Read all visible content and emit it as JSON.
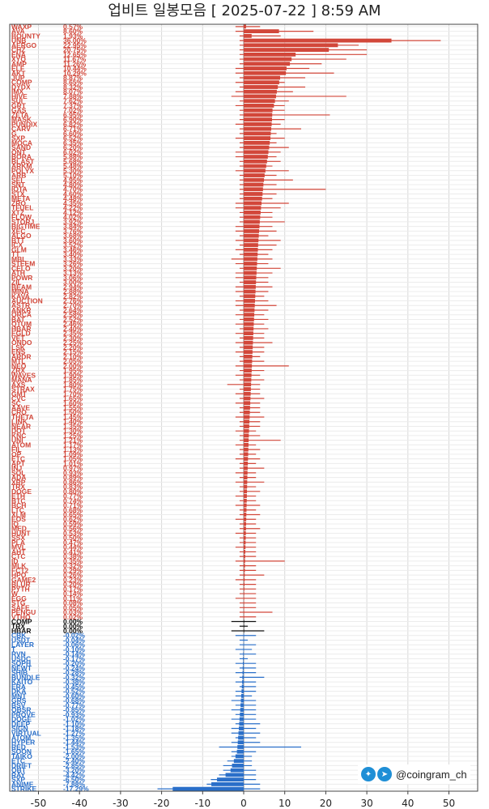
{
  "title": "업비트 일봉모음 [ 2025-07-22 ]  8:59 AM",
  "brand": {
    "handle": "@coingram_ch",
    "icons": [
      "twitter-icon",
      "telegram-icon"
    ]
  },
  "colors": {
    "up": "#d2473a",
    "flat": "#111111",
    "down": "#2a6fc9",
    "grid": "#d8d8d8"
  },
  "chart_data": {
    "type": "bar",
    "orientation": "horizontal",
    "xlim": [
      -57,
      57
    ],
    "xticks": [
      -50,
      -40,
      -30,
      -20,
      -10,
      0,
      10,
      20,
      30,
      40,
      50
    ],
    "grid": true,
    "series": [
      {
        "name": "WAXP",
        "change": 0.57,
        "low": -2,
        "high": 4
      },
      {
        "name": "AVA",
        "change": 8.6,
        "low": -2,
        "high": 17
      },
      {
        "name": "BOUNTY",
        "change": 1.93,
        "low": -1,
        "high": 9
      },
      {
        "name": "UNB",
        "change": 36.0,
        "low": -1,
        "high": 48
      },
      {
        "name": "AERGO",
        "change": 22.95,
        "low": -1,
        "high": 28
      },
      {
        "name": "CHZ",
        "change": 20.75,
        "low": -1,
        "high": 30
      },
      {
        "name": "ENA",
        "change": 12.65,
        "low": -1,
        "high": 30
      },
      {
        "name": "XYO",
        "change": 11.67,
        "low": -1,
        "high": 25
      },
      {
        "name": "AMP",
        "change": 11.26,
        "low": -1,
        "high": 19
      },
      {
        "name": "ELF",
        "change": 10.44,
        "low": -2,
        "high": 16
      },
      {
        "name": "AKT",
        "change": 10.29,
        "low": -2,
        "high": 22
      },
      {
        "name": "JUP",
        "change": 8.87,
        "low": -1,
        "high": 15
      },
      {
        "name": "COMP",
        "change": 8.65,
        "low": -2,
        "high": 10
      },
      {
        "name": "DYDX",
        "change": 8.32,
        "low": -1,
        "high": 15
      },
      {
        "name": "IMX",
        "change": 8.07,
        "low": -2,
        "high": 12
      },
      {
        "name": "HIVE",
        "change": 7.88,
        "low": -3,
        "high": 25
      },
      {
        "name": "SUI",
        "change": 7.62,
        "low": -1,
        "high": 11
      },
      {
        "name": "GRT",
        "change": 7.37,
        "low": -2,
        "high": 10
      },
      {
        "name": "GAS",
        "change": 7.02,
        "low": -1,
        "high": 10
      },
      {
        "name": "ZETA",
        "change": 6.95,
        "low": -1,
        "high": 21
      },
      {
        "name": "MASK",
        "change": 6.9,
        "low": -1,
        "high": 10
      },
      {
        "name": "PUNDIX",
        "change": 6.82,
        "low": -2,
        "high": 9
      },
      {
        "name": "CARV",
        "change": 6.71,
        "low": -1,
        "high": 14
      },
      {
        "name": "G",
        "change": 6.6,
        "low": -1,
        "high": 8
      },
      {
        "name": "SXP",
        "change": 6.52,
        "low": -2,
        "high": 10
      },
      {
        "name": "MOCA",
        "change": 6.35,
        "low": -1,
        "high": 8
      },
      {
        "name": "SAND",
        "change": 6.2,
        "low": -1,
        "high": 11
      },
      {
        "name": "ONT",
        "change": 6.02,
        "low": -2,
        "high": 9
      },
      {
        "name": "BORA",
        "change": 5.88,
        "low": -2,
        "high": 8
      },
      {
        "name": "BLAST",
        "change": 5.68,
        "low": -1,
        "high": 9
      },
      {
        "name": "ARKM",
        "change": 5.48,
        "low": -1,
        "high": 7
      },
      {
        "name": "POLYX",
        "change": 5.3,
        "low": -2,
        "high": 11
      },
      {
        "name": "ARB",
        "change": 5.1,
        "low": -1,
        "high": 8
      },
      {
        "name": "SEI",
        "change": 4.95,
        "low": -1,
        "high": 12
      },
      {
        "name": "SNT",
        "change": 4.8,
        "low": -1,
        "high": 8
      },
      {
        "name": "IOTA",
        "change": 4.7,
        "low": -1,
        "high": 20
      },
      {
        "name": "STX",
        "change": 4.6,
        "low": -1,
        "high": 8
      },
      {
        "name": "META",
        "change": 4.48,
        "low": -1,
        "high": 7
      },
      {
        "name": "ZRO",
        "change": 4.35,
        "low": -2,
        "high": 11
      },
      {
        "name": "TFUEL",
        "change": 4.22,
        "low": -2,
        "high": 9
      },
      {
        "name": "XTZ",
        "change": 4.12,
        "low": -1,
        "high": 7
      },
      {
        "name": "FLOW",
        "change": 4.02,
        "low": -1,
        "high": 7
      },
      {
        "name": "STORJ",
        "change": 3.92,
        "low": -1,
        "high": 10
      },
      {
        "name": "BIGTIME",
        "change": 3.84,
        "low": -2,
        "high": 7
      },
      {
        "name": "XEC",
        "change": 3.76,
        "low": -2,
        "high": 8
      },
      {
        "name": "ALGO",
        "change": 3.68,
        "low": -1,
        "high": 6
      },
      {
        "name": "BTT",
        "change": 3.6,
        "low": -2,
        "high": 9
      },
      {
        "name": "ICX",
        "change": 3.52,
        "low": -1,
        "high": 8
      },
      {
        "name": "GLM",
        "change": 3.46,
        "low": -2,
        "high": 7
      },
      {
        "name": "TT",
        "change": 3.4,
        "low": -1,
        "high": 6
      },
      {
        "name": "MBL",
        "change": 3.33,
        "low": -3,
        "high": 7
      },
      {
        "name": "STEEM",
        "change": 3.26,
        "low": -2,
        "high": 6
      },
      {
        "name": "CELO",
        "change": 3.2,
        "low": -1,
        "high": 9
      },
      {
        "name": "ATH",
        "change": 3.13,
        "low": -2,
        "high": 7
      },
      {
        "name": "POWR",
        "change": 3.06,
        "low": -2,
        "high": 6
      },
      {
        "name": "ZIL",
        "change": 3.0,
        "low": -1,
        "high": 6
      },
      {
        "name": "BEAM",
        "change": 2.94,
        "low": -2,
        "high": 7
      },
      {
        "name": "MINA",
        "change": 2.88,
        "low": -2,
        "high": 6
      },
      {
        "name": "KAVA",
        "change": 2.82,
        "low": -1,
        "high": 5
      },
      {
        "name": "AUCTION",
        "change": 2.76,
        "low": -2,
        "high": 6
      },
      {
        "name": "ASTR",
        "change": 2.7,
        "low": -2,
        "high": 8
      },
      {
        "name": "ANKR",
        "change": 2.64,
        "low": -1,
        "high": 6
      },
      {
        "name": "ORCA",
        "change": 2.58,
        "low": -2,
        "high": 5
      },
      {
        "name": "BAT",
        "change": 2.52,
        "low": -1,
        "high": 6
      },
      {
        "name": "QTUM",
        "change": 2.46,
        "low": -2,
        "high": 5
      },
      {
        "name": "HBAR",
        "change": 2.4,
        "low": -1,
        "high": 6
      },
      {
        "name": "EGLD",
        "change": 2.35,
        "low": -2,
        "high": 5
      },
      {
        "name": "VET",
        "change": 2.3,
        "low": -1,
        "high": 5
      },
      {
        "name": "ONDO",
        "change": 2.25,
        "low": -2,
        "high": 7
      },
      {
        "name": "LSK",
        "change": 2.2,
        "low": -1,
        "high": 5
      },
      {
        "name": "ENS",
        "change": 2.15,
        "low": -2,
        "high": 5
      },
      {
        "name": "ARDR",
        "change": 2.1,
        "low": -1,
        "high": 4
      },
      {
        "name": "MTL",
        "change": 2.05,
        "low": -1,
        "high": 5
      },
      {
        "name": "NEO",
        "change": 2.0,
        "low": -2,
        "high": 11
      },
      {
        "name": "ZRX",
        "change": 1.95,
        "low": -1,
        "high": 5
      },
      {
        "name": "WAVES",
        "change": 1.9,
        "low": -2,
        "high": 4
      },
      {
        "name": "MANA",
        "change": 1.85,
        "low": -1,
        "high": 5
      },
      {
        "name": "AXS",
        "change": 1.8,
        "low": -4,
        "high": 4
      },
      {
        "name": "STRAX",
        "change": 1.75,
        "low": -1,
        "high": 4
      },
      {
        "name": "GMT",
        "change": 1.7,
        "low": -2,
        "high": 4
      },
      {
        "name": "CVC",
        "change": 1.65,
        "low": -1,
        "high": 5
      },
      {
        "name": "SC",
        "change": 1.6,
        "low": -2,
        "high": 4
      },
      {
        "name": "AAVE",
        "change": 1.55,
        "low": -1,
        "high": 4
      },
      {
        "name": "CRO",
        "change": 1.5,
        "low": -1,
        "high": 4
      },
      {
        "name": "THETA",
        "change": 1.45,
        "low": -2,
        "high": 5
      },
      {
        "name": "LINK",
        "change": 1.4,
        "low": -1,
        "high": 4
      },
      {
        "name": "NEAR",
        "change": 1.35,
        "low": -1,
        "high": 4
      },
      {
        "name": "DOT",
        "change": 1.3,
        "low": -2,
        "high": 3
      },
      {
        "name": "KNC",
        "change": 1.25,
        "low": -1,
        "high": 4
      },
      {
        "name": "UNI",
        "change": 1.21,
        "low": -1,
        "high": 9
      },
      {
        "name": "ATOM",
        "change": 1.17,
        "low": -2,
        "high": 3
      },
      {
        "name": "FIL",
        "change": 1.13,
        "low": -1,
        "high": 4
      },
      {
        "name": "OP",
        "change": 1.09,
        "low": -1,
        "high": 3
      },
      {
        "name": "ETC",
        "change": 1.05,
        "low": -2,
        "high": 4
      },
      {
        "name": "APT",
        "change": 1.01,
        "low": -1,
        "high": 3
      },
      {
        "name": "INJ",
        "change": 0.97,
        "low": -1,
        "high": 5
      },
      {
        "name": "SOL",
        "change": 0.93,
        "low": -2,
        "high": 3
      },
      {
        "name": "ADA",
        "change": 0.89,
        "low": -1,
        "high": 3
      },
      {
        "name": "XRP",
        "change": 0.86,
        "low": -2,
        "high": 5
      },
      {
        "name": "TRX",
        "change": 0.83,
        "low": -1,
        "high": 3
      },
      {
        "name": "DOGE",
        "change": 0.8,
        "low": -1,
        "high": 4
      },
      {
        "name": "ETH",
        "change": 0.77,
        "low": -2,
        "high": 3
      },
      {
        "name": "BTC",
        "change": 0.74,
        "low": -1,
        "high": 3
      },
      {
        "name": "BCH",
        "change": 0.71,
        "low": -2,
        "high": 4
      },
      {
        "name": "LTC",
        "change": 0.68,
        "low": -1,
        "high": 3
      },
      {
        "name": "XLM",
        "change": 0.65,
        "low": -1,
        "high": 4
      },
      {
        "name": "EOS",
        "change": 0.62,
        "low": -2,
        "high": 3
      },
      {
        "name": "IQ",
        "change": 0.59,
        "low": -1,
        "high": 3
      },
      {
        "name": "MED",
        "change": 0.56,
        "low": -1,
        "high": 4
      },
      {
        "name": "HUNT",
        "change": 0.53,
        "low": -2,
        "high": 3
      },
      {
        "name": "SSX",
        "change": 0.5,
        "low": -1,
        "high": 3
      },
      {
        "name": "PLA",
        "change": 0.47,
        "low": -1,
        "high": 3
      },
      {
        "name": "MVL",
        "change": 0.44,
        "low": -2,
        "high": 3
      },
      {
        "name": "AHT",
        "change": 0.41,
        "low": -1,
        "high": 3
      },
      {
        "name": "CTC",
        "change": 0.38,
        "low": -1,
        "high": 3
      },
      {
        "name": "ID",
        "change": 0.35,
        "low": -2,
        "high": 10
      },
      {
        "name": "MLK",
        "change": 0.32,
        "low": -1,
        "high": 3
      },
      {
        "name": "FCT2",
        "change": 0.29,
        "low": -1,
        "high": 3
      },
      {
        "name": "HPO",
        "change": 0.26,
        "low": -1,
        "high": 5
      },
      {
        "name": "GAME2",
        "change": 0.23,
        "low": -2,
        "high": 3
      },
      {
        "name": "BLUR",
        "change": 0.2,
        "low": -1,
        "high": 3
      },
      {
        "name": "PYTH",
        "change": 0.17,
        "low": -1,
        "high": 3
      },
      {
        "name": "W",
        "change": 0.14,
        "low": -1,
        "high": 3
      },
      {
        "name": "EGG",
        "change": 0.11,
        "low": -2,
        "high": 3
      },
      {
        "name": "STG",
        "change": 0.08,
        "low": -1,
        "high": 3
      },
      {
        "name": "SAFE",
        "change": 0.05,
        "low": -1,
        "high": 3
      },
      {
        "name": "PENGU",
        "change": 0.03,
        "low": -1,
        "high": 7
      },
      {
        "name": "VTHO",
        "change": 0.02,
        "low": -1,
        "high": 3
      },
      {
        "name": "COMP",
        "change": 0.0,
        "low": -3,
        "high": 3
      },
      {
        "name": "TRX",
        "change": 0.0,
        "low": -1,
        "high": 1
      },
      {
        "name": "HBAR",
        "change": 0.0,
        "low": -3,
        "high": 5
      },
      {
        "name": "CBK",
        "change": -0.02,
        "low": -2,
        "high": 3
      },
      {
        "name": "USDT",
        "change": -0.04,
        "low": -1,
        "high": 1
      },
      {
        "name": "LAYER",
        "change": -0.06,
        "low": -1,
        "high": 3
      },
      {
        "name": "T",
        "change": -0.1,
        "low": -2,
        "high": 2
      },
      {
        "name": "RVN",
        "change": -0.14,
        "low": -1,
        "high": 3
      },
      {
        "name": "USDC",
        "change": -0.17,
        "low": -1,
        "high": 1
      },
      {
        "name": "SOPH",
        "change": -0.2,
        "low": -2,
        "high": 3
      },
      {
        "name": "NEWT",
        "change": -0.24,
        "low": -1,
        "high": 3
      },
      {
        "name": "SHIB",
        "change": -0.28,
        "low": -2,
        "high": 3
      },
      {
        "name": "BUNDLE",
        "change": -0.32,
        "low": -1,
        "high": 5
      },
      {
        "name": "KAITO",
        "change": -0.38,
        "low": -2,
        "high": 3
      },
      {
        "name": "ERA",
        "change": -0.45,
        "low": -1,
        "high": 3
      },
      {
        "name": "DKA",
        "change": -0.52,
        "low": -2,
        "high": 3
      },
      {
        "name": "MNT",
        "change": -0.6,
        "low": -2,
        "high": 2
      },
      {
        "name": "GRS",
        "change": -0.68,
        "low": -3,
        "high": 3
      },
      {
        "name": "BSV",
        "change": -0.77,
        "low": -2,
        "high": 3
      },
      {
        "name": "OBSR",
        "change": -0.85,
        "low": -3,
        "high": 3
      },
      {
        "name": "PROVE",
        "change": -0.93,
        "low": -2,
        "high": 3
      },
      {
        "name": "DOGE",
        "change": -1.02,
        "low": -3,
        "high": 3
      },
      {
        "name": "DEEP",
        "change": -1.1,
        "low": -2,
        "high": 4
      },
      {
        "name": "SIGN",
        "change": -1.18,
        "low": -3,
        "high": 3
      },
      {
        "name": "VIRTUAL",
        "change": -1.27,
        "low": -3,
        "high": 4
      },
      {
        "name": "ATOM",
        "change": -1.35,
        "low": -2,
        "high": 3
      },
      {
        "name": "HYPER",
        "change": -1.44,
        "low": -3,
        "high": 4
      },
      {
        "name": "RED",
        "change": -1.53,
        "low": -6,
        "high": 14
      },
      {
        "name": "SOON",
        "change": -1.65,
        "low": -3,
        "high": 3
      },
      {
        "name": "TAIKO",
        "change": -2.0,
        "low": -3,
        "high": 2
      },
      {
        "name": "ETC",
        "change": -2.4,
        "low": -4,
        "high": 2
      },
      {
        "name": "DRIFT",
        "change": -2.85,
        "low": -5,
        "high": 2
      },
      {
        "name": "OBT",
        "change": -3.2,
        "low": -5,
        "high": 3
      },
      {
        "name": "RAY",
        "change": -4.42,
        "low": -6,
        "high": 3
      },
      {
        "name": "SXP",
        "change": -6.5,
        "low": -8,
        "high": 3
      },
      {
        "name": "ANIME",
        "change": -7.88,
        "low": -9,
        "high": 4
      },
      {
        "name": "STRIKE",
        "change": -17.29,
        "low": -21,
        "high": 4
      }
    ]
  }
}
